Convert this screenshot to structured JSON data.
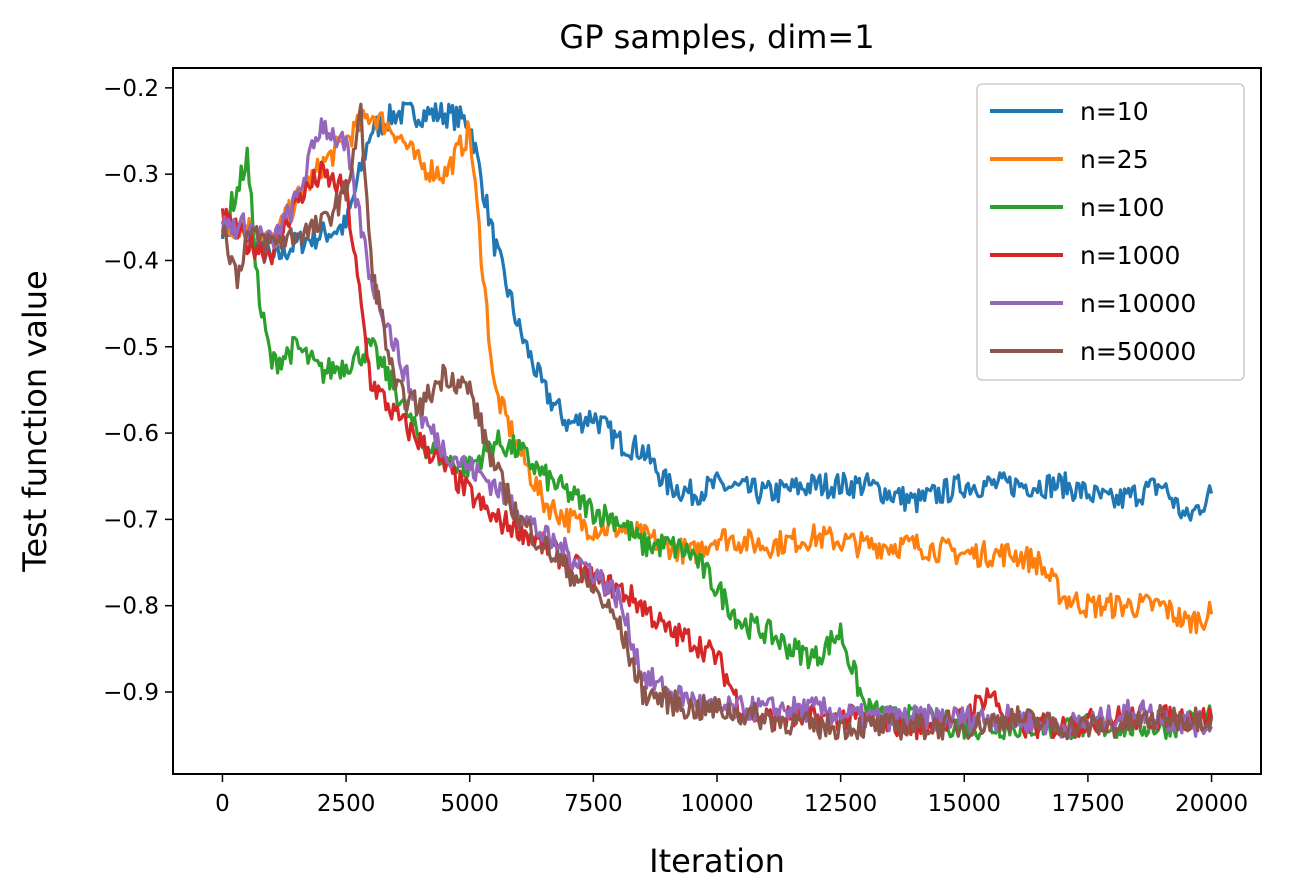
{
  "chart_data": {
    "type": "line",
    "title": "GP samples, dim=1",
    "xlabel": "Iteration",
    "ylabel": "Test function value",
    "xlim": [
      -1000,
      21000
    ],
    "ylim": [
      -0.995,
      -0.177
    ],
    "xticks": [
      0,
      2500,
      5000,
      7500,
      10000,
      12500,
      15000,
      17500,
      20000
    ],
    "xtick_labels": [
      "0",
      "2500",
      "5000",
      "7500",
      "10000",
      "12500",
      "15000",
      "17500",
      "20000"
    ],
    "yticks": [
      -0.2,
      -0.3,
      -0.4,
      -0.5,
      -0.6,
      -0.7,
      -0.8,
      -0.9
    ],
    "ytick_labels": [
      "−0.2",
      "−0.3",
      "−0.4",
      "−0.5",
      "−0.6",
      "−0.7",
      "−0.8",
      "−0.9"
    ],
    "grid": false,
    "legend_position": "top-right",
    "series": [
      {
        "name": "n=10",
        "color": "#1f77b4",
        "x": [
          0,
          500,
          1000,
          1500,
          2000,
          2500,
          3000,
          3500,
          4000,
          4500,
          5000,
          5500,
          6000,
          6500,
          7000,
          7500,
          8000,
          8500,
          9000,
          9500,
          10000,
          11000,
          12000,
          13000,
          14000,
          15000,
          16000,
          17000,
          18000,
          19000,
          19500,
          20000
        ],
        "y": [
          -0.36,
          -0.37,
          -0.4,
          -0.38,
          -0.37,
          -0.36,
          -0.25,
          -0.23,
          -0.23,
          -0.23,
          -0.24,
          -0.38,
          -0.48,
          -0.55,
          -0.59,
          -0.58,
          -0.61,
          -0.62,
          -0.66,
          -0.67,
          -0.66,
          -0.67,
          -0.66,
          -0.66,
          -0.68,
          -0.66,
          -0.66,
          -0.66,
          -0.68,
          -0.66,
          -0.7,
          -0.67
        ]
      },
      {
        "name": "n=25",
        "color": "#ff7f0e",
        "x": [
          0,
          500,
          1000,
          1500,
          2000,
          2500,
          3000,
          3500,
          4000,
          4500,
          5000,
          5500,
          6000,
          6500,
          7000,
          7500,
          8000,
          8500,
          9000,
          9500,
          10000,
          11000,
          12000,
          13000,
          14000,
          15000,
          16000,
          16500,
          17000,
          17500,
          18000,
          19000,
          19500,
          20000
        ],
        "y": [
          -0.36,
          -0.36,
          -0.38,
          -0.33,
          -0.29,
          -0.26,
          -0.23,
          -0.25,
          -0.29,
          -0.3,
          -0.25,
          -0.55,
          -0.62,
          -0.68,
          -0.7,
          -0.71,
          -0.71,
          -0.72,
          -0.73,
          -0.74,
          -0.72,
          -0.73,
          -0.72,
          -0.73,
          -0.73,
          -0.74,
          -0.74,
          -0.75,
          -0.79,
          -0.8,
          -0.8,
          -0.8,
          -0.82,
          -0.81
        ]
      },
      {
        "name": "n=100",
        "color": "#2ca02c",
        "x": [
          0,
          300,
          500,
          750,
          1000,
          1500,
          2000,
          2500,
          3000,
          3500,
          4000,
          4500,
          5000,
          5500,
          6000,
          6500,
          7000,
          7500,
          8000,
          8500,
          9000,
          9500,
          10000,
          10500,
          11000,
          11500,
          12000,
          12500,
          13000,
          13500,
          14000,
          15000,
          16000,
          17000,
          18000,
          19000,
          20000
        ],
        "y": [
          -0.36,
          -0.32,
          -0.28,
          -0.45,
          -0.52,
          -0.5,
          -0.53,
          -0.52,
          -0.5,
          -0.55,
          -0.61,
          -0.63,
          -0.64,
          -0.61,
          -0.62,
          -0.65,
          -0.67,
          -0.69,
          -0.7,
          -0.73,
          -0.73,
          -0.74,
          -0.78,
          -0.82,
          -0.83,
          -0.85,
          -0.86,
          -0.83,
          -0.92,
          -0.93,
          -0.93,
          -0.94,
          -0.94,
          -0.94,
          -0.94,
          -0.94,
          -0.93
        ]
      },
      {
        "name": "n=1000",
        "color": "#d62728",
        "x": [
          0,
          500,
          1000,
          1500,
          2000,
          2500,
          3000,
          3500,
          4000,
          4500,
          5000,
          5500,
          6000,
          6500,
          7000,
          7500,
          8000,
          8500,
          9000,
          9500,
          10000,
          10500,
          11000,
          12000,
          13000,
          14000,
          15000,
          15500,
          16000,
          17000,
          18000,
          19000,
          20000
        ],
        "y": [
          -0.35,
          -0.38,
          -0.39,
          -0.33,
          -0.3,
          -0.32,
          -0.54,
          -0.58,
          -0.61,
          -0.64,
          -0.67,
          -0.7,
          -0.71,
          -0.73,
          -0.75,
          -0.77,
          -0.78,
          -0.8,
          -0.83,
          -0.84,
          -0.86,
          -0.92,
          -0.93,
          -0.93,
          -0.93,
          -0.94,
          -0.93,
          -0.9,
          -0.94,
          -0.94,
          -0.93,
          -0.93,
          -0.93
        ]
      },
      {
        "name": "n=10000",
        "color": "#9467bd",
        "x": [
          0,
          500,
          1000,
          1500,
          2000,
          2500,
          3000,
          3500,
          4000,
          4500,
          5000,
          5500,
          6000,
          6500,
          7000,
          7500,
          8000,
          8500,
          9000,
          9500,
          10000,
          11000,
          12000,
          13000,
          14000,
          15000,
          16000,
          17000,
          18000,
          18500,
          19000,
          20000
        ],
        "y": [
          -0.36,
          -0.36,
          -0.38,
          -0.33,
          -0.24,
          -0.27,
          -0.42,
          -0.5,
          -0.58,
          -0.62,
          -0.64,
          -0.66,
          -0.69,
          -0.72,
          -0.74,
          -0.76,
          -0.79,
          -0.88,
          -0.9,
          -0.91,
          -0.92,
          -0.92,
          -0.92,
          -0.93,
          -0.93,
          -0.93,
          -0.93,
          -0.94,
          -0.93,
          -0.92,
          -0.93,
          -0.94
        ]
      },
      {
        "name": "n=50000",
        "color": "#8c564b",
        "x": [
          0,
          300,
          500,
          1000,
          1500,
          2000,
          2500,
          2800,
          3000,
          3500,
          4000,
          4500,
          5000,
          5500,
          6000,
          6500,
          7000,
          7500,
          8000,
          8500,
          9000,
          9500,
          10000,
          11000,
          12000,
          13000,
          14000,
          15000,
          16000,
          17000,
          18000,
          19000,
          20000
        ],
        "y": [
          -0.36,
          -0.42,
          -0.37,
          -0.38,
          -0.37,
          -0.36,
          -0.32,
          -0.23,
          -0.4,
          -0.55,
          -0.57,
          -0.53,
          -0.55,
          -0.64,
          -0.7,
          -0.73,
          -0.76,
          -0.78,
          -0.82,
          -0.9,
          -0.91,
          -0.92,
          -0.92,
          -0.93,
          -0.94,
          -0.94,
          -0.94,
          -0.94,
          -0.93,
          -0.94,
          -0.94,
          -0.93,
          -0.93
        ]
      }
    ]
  }
}
